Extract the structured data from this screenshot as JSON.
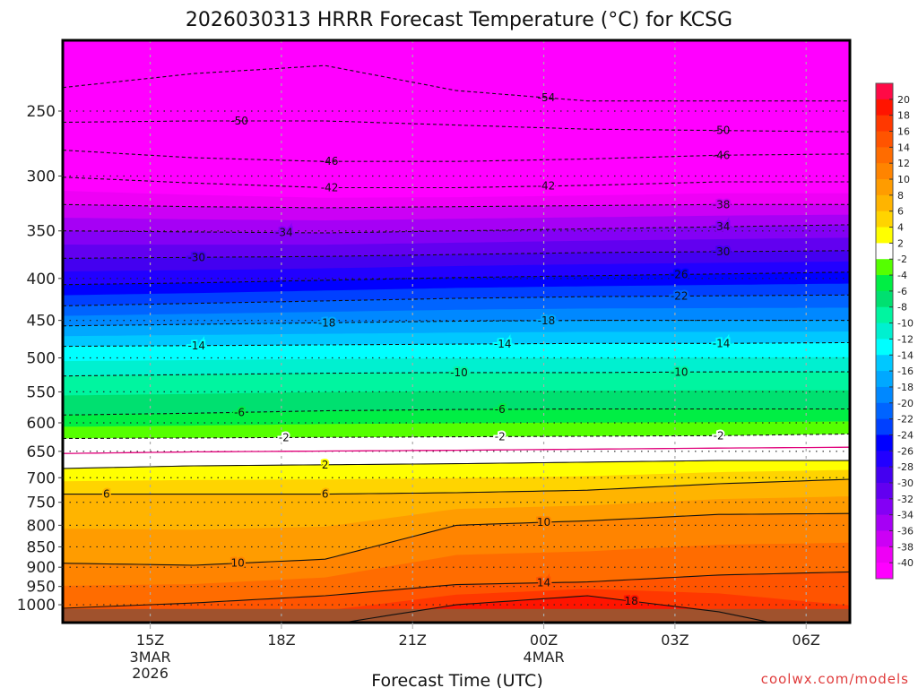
{
  "chart_data": {
    "type": "contour",
    "title": "2026030313 HRRR Forecast Temperature (°C) for KCSG",
    "xlabel": "Forecast Time (UTC)",
    "ylabel": "",
    "y_scale": "log",
    "ylim": [
      1051,
      205
    ],
    "y_ticks": [
      250,
      300,
      350,
      400,
      450,
      500,
      550,
      600,
      650,
      700,
      750,
      800,
      850,
      900,
      950,
      1000
    ],
    "x_range_hours": [
      0,
      18
    ],
    "x_ticks": [
      {
        "hour": 2,
        "label": "15Z",
        "sub1": "3MAR",
        "sub2": "2026"
      },
      {
        "hour": 5,
        "label": "18Z",
        "sub1": "",
        "sub2": ""
      },
      {
        "hour": 8,
        "label": "21Z",
        "sub1": "",
        "sub2": ""
      },
      {
        "hour": 11,
        "label": "00Z",
        "sub1": "4MAR",
        "sub2": ""
      },
      {
        "hour": 14,
        "label": "03Z",
        "sub1": "",
        "sub2": ""
      },
      {
        "hour": 17,
        "label": "06Z",
        "sub1": "",
        "sub2": ""
      }
    ],
    "sample_hours": [
      0,
      3,
      6,
      9,
      12,
      15,
      18
    ],
    "isotherms_hPa": {
      "-54": [
        234,
        225,
        220,
        236,
        243,
        243,
        243
      ],
      "-50": [
        258,
        257,
        257,
        260,
        263,
        264,
        265
      ],
      "-46": [
        279,
        285,
        288,
        288,
        286,
        283,
        282
      ],
      "-42": [
        301,
        306,
        310,
        310,
        308,
        305,
        305
      ],
      "-38": [
        325,
        327,
        328,
        327,
        326,
        325,
        325
      ],
      "-34": [
        350,
        351,
        352,
        350,
        348,
        346,
        344
      ],
      "-30": [
        378,
        377,
        376,
        374,
        372,
        371,
        370
      ],
      "-26": [
        407,
        405,
        402,
        399,
        397,
        395,
        393
      ],
      "-22": [
        432,
        429,
        426,
        423,
        421,
        420,
        419
      ],
      "-18": [
        457,
        455,
        453,
        451,
        450,
        450,
        450
      ],
      "-14": [
        484,
        483,
        482,
        481,
        480,
        480,
        479
      ],
      "-10": [
        526,
        524,
        522,
        521,
        521,
        520,
        520
      ],
      "-6": [
        587,
        584,
        580,
        578,
        577,
        577,
        577
      ],
      "-2": [
        627,
        626,
        625,
        624,
        623,
        622,
        619
      ],
      "2": [
        682,
        677,
        675,
        673,
        670,
        667,
        667
      ],
      "6": [
        733,
        733,
        733,
        730,
        725,
        712,
        703
      ],
      "10": [
        890,
        895,
        880,
        800,
        790,
        776,
        774
      ],
      "14": [
        1010,
        995,
        975,
        945,
        938,
        920,
        912
      ],
      "18": [
        1100,
        1100,
        1060,
        1000,
        975,
        1020,
        1100
      ]
    },
    "surface_hPa": 1012,
    "contour_labels": [
      {
        "t": -54,
        "h": 11.06
      },
      {
        "t": -50,
        "h": 4.04
      },
      {
        "t": -50,
        "h": 15.06
      },
      {
        "t": -46,
        "h": 6.1
      },
      {
        "t": -46,
        "h": 15.06
      },
      {
        "t": -42,
        "h": 6.1
      },
      {
        "t": -42,
        "h": 11.06
      },
      {
        "t": -38,
        "h": 15.06
      },
      {
        "t": -34,
        "h": 5.06
      },
      {
        "t": -34,
        "h": 15.06
      },
      {
        "t": -30,
        "h": 3.06
      },
      {
        "t": -30,
        "h": 15.06
      },
      {
        "t": -26,
        "h": 14.1
      },
      {
        "t": -22,
        "h": 14.1
      },
      {
        "t": -18,
        "h": 6.04
      },
      {
        "t": -18,
        "h": 11.06
      },
      {
        "t": -14,
        "h": 3.06
      },
      {
        "t": -14,
        "h": 10.06
      },
      {
        "t": -14,
        "h": 15.06
      },
      {
        "t": -10,
        "h": 9.06
      },
      {
        "t": -10,
        "h": 14.1
      },
      {
        "t": -6,
        "h": 4.04
      },
      {
        "t": -6,
        "h": 10.0
      },
      {
        "t": -2,
        "h": 5.06
      },
      {
        "t": -2,
        "h": 10.0
      },
      {
        "t": -2,
        "h": 15.0
      },
      {
        "t": 2,
        "h": 6.0
      },
      {
        "t": 6,
        "h": 1.0
      },
      {
        "t": 6,
        "h": 6.0
      },
      {
        "t": 10,
        "h": 4.0
      },
      {
        "t": 10,
        "h": 11.0
      },
      {
        "t": 14,
        "h": 11.0
      },
      {
        "t": 18,
        "h": 13.0
      }
    ],
    "colorbar": {
      "labels": [
        "20",
        "18",
        "16",
        "14",
        "12",
        "10",
        "8",
        "6",
        "4",
        "2",
        "-2",
        "-4",
        "-6",
        "-8",
        "-10",
        "-12",
        "-14",
        "-16",
        "-18",
        "-20",
        "-22",
        "-24",
        "-26",
        "-28",
        "-30",
        "-32",
        "-34",
        "-36",
        "-38",
        "-40"
      ],
      "colors": [
        "#ff0a46",
        "#ff1400",
        "#ff3800",
        "#ff5400",
        "#ff6c00",
        "#ff8400",
        "#ff9c00",
        "#ffb400",
        "#ffd400",
        "#ffff00",
        "#ffffff",
        "#55ff00",
        "#00ee44",
        "#00e070",
        "#00f5a0",
        "#00f0d0",
        "#00ffff",
        "#00c8ff",
        "#00a8ff",
        "#0088ff",
        "#0064ff",
        "#0040ff",
        "#0000ff",
        "#2200ff",
        "#4400f0",
        "#6200f0",
        "#8400f5",
        "#a600f5",
        "#cc00f5",
        "#ee00f5",
        "#ff00ff"
      ]
    }
  },
  "footer": {
    "credit": "coolwx.com/models"
  }
}
